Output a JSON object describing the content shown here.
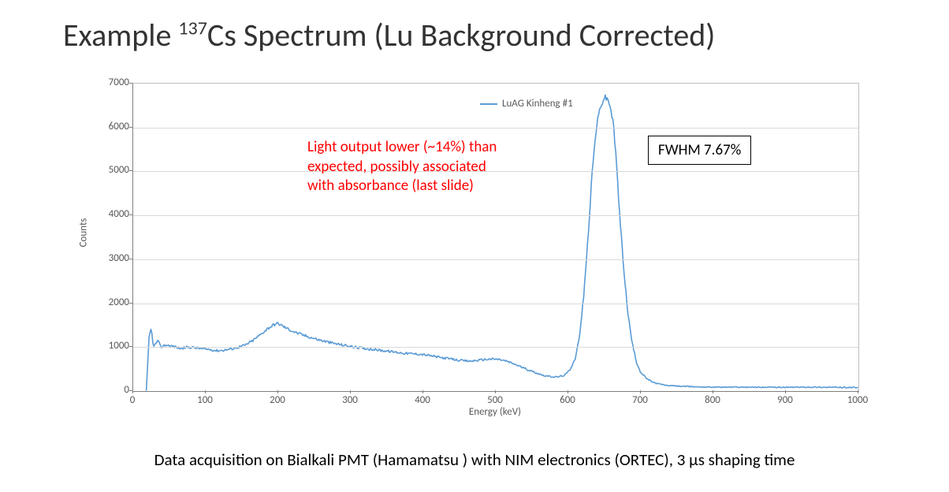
{
  "title_pre": "Example ",
  "title_sup": "137",
  "title_post": "Cs Spectrum (Lu Background Corrected)",
  "chart": {
    "type": "line",
    "series_name": "LuAG Kinheng #1",
    "series_color": "#5b9bd5",
    "line_width": 1.6,
    "background_color": "#ffffff",
    "grid_color": "#d9d9d9",
    "axis_color": "#7f7f7f",
    "tick_label_color": "#595959",
    "tick_fontsize": 13,
    "xlabel": "Energy (keV)",
    "ylabel": "Counts",
    "xlim": [
      0,
      1000
    ],
    "ylim": [
      0,
      7000
    ],
    "xticks": [
      0,
      100,
      200,
      300,
      400,
      500,
      600,
      700,
      800,
      900,
      1000
    ],
    "yticks": [
      0,
      1000,
      2000,
      3000,
      4000,
      5000,
      6000,
      7000
    ],
    "points": [
      [
        18,
        0
      ],
      [
        20,
        620
      ],
      [
        22,
        1250
      ],
      [
        25,
        1420
      ],
      [
        28,
        1000
      ],
      [
        34,
        1150
      ],
      [
        38,
        1000
      ],
      [
        45,
        1050
      ],
      [
        55,
        1020
      ],
      [
        65,
        970
      ],
      [
        75,
        1000
      ],
      [
        85,
        990
      ],
      [
        95,
        960
      ],
      [
        105,
        950
      ],
      [
        115,
        920
      ],
      [
        125,
        930
      ],
      [
        135,
        960
      ],
      [
        145,
        1000
      ],
      [
        155,
        1050
      ],
      [
        165,
        1150
      ],
      [
        175,
        1280
      ],
      [
        185,
        1420
      ],
      [
        195,
        1520
      ],
      [
        200,
        1540
      ],
      [
        205,
        1490
      ],
      [
        215,
        1400
      ],
      [
        225,
        1330
      ],
      [
        235,
        1270
      ],
      [
        245,
        1220
      ],
      [
        255,
        1170
      ],
      [
        265,
        1130
      ],
      [
        275,
        1090
      ],
      [
        285,
        1060
      ],
      [
        295,
        1030
      ],
      [
        305,
        1000
      ],
      [
        315,
        980
      ],
      [
        325,
        960
      ],
      [
        335,
        940
      ],
      [
        345,
        920
      ],
      [
        355,
        900
      ],
      [
        365,
        880
      ],
      [
        375,
        860
      ],
      [
        385,
        850
      ],
      [
        395,
        840
      ],
      [
        405,
        820
      ],
      [
        415,
        790
      ],
      [
        425,
        760
      ],
      [
        435,
        740
      ],
      [
        445,
        710
      ],
      [
        455,
        690
      ],
      [
        465,
        680
      ],
      [
        475,
        700
      ],
      [
        485,
        720
      ],
      [
        495,
        730
      ],
      [
        505,
        720
      ],
      [
        515,
        680
      ],
      [
        525,
        620
      ],
      [
        535,
        550
      ],
      [
        545,
        480
      ],
      [
        555,
        420
      ],
      [
        565,
        360
      ],
      [
        575,
        330
      ],
      [
        585,
        320
      ],
      [
        595,
        360
      ],
      [
        602,
        480
      ],
      [
        610,
        760
      ],
      [
        616,
        1300
      ],
      [
        622,
        2300
      ],
      [
        628,
        3700
      ],
      [
        633,
        5000
      ],
      [
        638,
        5900
      ],
      [
        642,
        6300
      ],
      [
        646,
        6550
      ],
      [
        650,
        6680
      ],
      [
        654,
        6650
      ],
      [
        658,
        6480
      ],
      [
        662,
        6080
      ],
      [
        666,
        5300
      ],
      [
        670,
        4200
      ],
      [
        676,
        2900
      ],
      [
        682,
        1800
      ],
      [
        688,
        1100
      ],
      [
        694,
        660
      ],
      [
        700,
        420
      ],
      [
        710,
        260
      ],
      [
        720,
        180
      ],
      [
        735,
        130
      ],
      [
        755,
        110
      ],
      [
        780,
        95
      ],
      [
        810,
        90
      ],
      [
        850,
        90
      ],
      [
        890,
        85
      ],
      [
        930,
        90
      ],
      [
        970,
        85
      ],
      [
        1000,
        80
      ]
    ],
    "noise_amp": 35
  },
  "annot_red_l1": "Light output lower (~14%) than",
  "annot_red_l2": "expected, possibly associated",
  "annot_red_l3": "with absorbance (last slide)",
  "annot_box": "FWHM 7.67%",
  "caption_pre": "Data acquisition on Bialkali PMT (Hamamatsu ) with NIM electronics (ORTEC), 3 ",
  "caption_mu": "μ",
  "caption_post": "s shaping time"
}
